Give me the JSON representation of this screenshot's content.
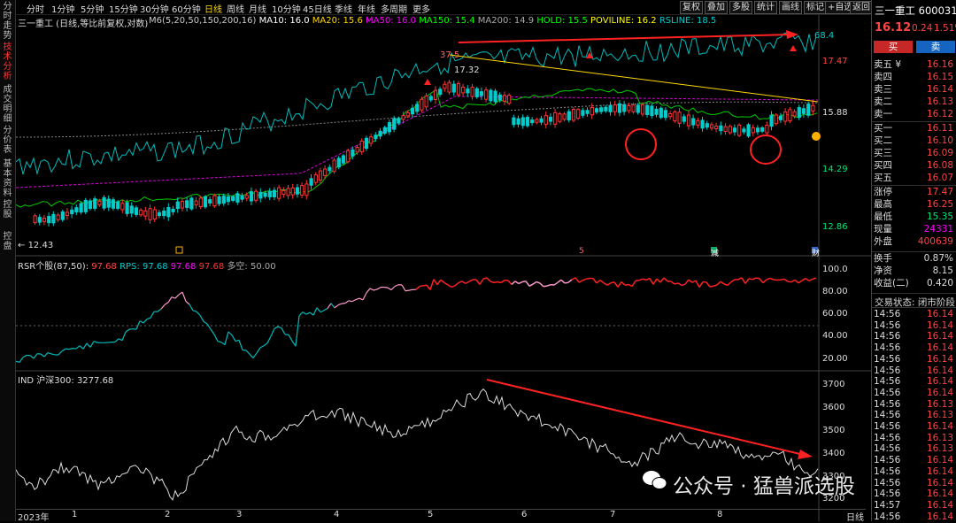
{
  "left_tabs": [
    "分时走势",
    "技术分析",
    "成交明细",
    "分价表",
    "基本资料",
    "控股",
    "控盘"
  ],
  "toolbar": {
    "periods": [
      "分时",
      "1分钟",
      "5分钟",
      "15分钟",
      "30分钟",
      "60分钟",
      "日线",
      "周线",
      "月线",
      "10分钟",
      "45日线",
      "季线",
      "年线",
      "多周期",
      "更多"
    ],
    "active_period": "日线",
    "buttons": [
      "复权",
      "叠加",
      "多股",
      "统计",
      "画线",
      "标记",
      "+自选",
      "返回"
    ]
  },
  "main_legend": {
    "title": "三一重工 (日线,等比前复权,对数)",
    "items": [
      {
        "text": "M6(5,20,50,150,200,16)",
        "color": "#cccccc"
      },
      {
        "text": "MA10: 16.0",
        "color": "#ffffff"
      },
      {
        "text": "MA20: 15.6",
        "color": "#ffd700"
      },
      {
        "text": "MA50: 16.0",
        "color": "#ff00ff"
      },
      {
        "text": "MA150: 15.4",
        "color": "#00ff00"
      },
      {
        "text": "MA200: 14.9",
        "color": "#aaaaaa"
      },
      {
        "text": "HOLD: 15.5",
        "color": "#00ff00"
      },
      {
        "text": "POVILINE: 16.2",
        "color": "#ffff00"
      },
      {
        "text": "RSLINE: 18.5",
        "color": "#00cccc"
      }
    ]
  },
  "price_axis": [
    "17.47",
    "15.88",
    "14.29",
    "12.86"
  ],
  "chart_annotations": {
    "high_label": "37.5",
    "high_price": "17.32",
    "low_price": "12.43",
    "rsline_value": "68.4",
    "mark_5": "5",
    "mark_jian": "减",
    "mark_cai": "财"
  },
  "rsr_legend": {
    "title": "RSR个股(87,50)",
    "items": [
      {
        "text": "RPS: 97.68",
        "color": "#00cccc"
      },
      {
        "text": "97.68",
        "color": "#ff00ff"
      },
      {
        "text": "97.68",
        "color": "#ff3333"
      },
      {
        "text": "多空: 50.00",
        "color": "#aaaaaa"
      }
    ],
    "first_value": "97.68"
  },
  "rsr_axis": [
    "100.0",
    "80.00",
    "60.00",
    "40.00",
    "20.00"
  ],
  "ind_legend": {
    "title": "IND 沪深300: 3277.68"
  },
  "ind_axis": [
    "3700",
    "3600",
    "3500",
    "3400",
    "3300",
    "3200"
  ],
  "x_axis": {
    "labels": [
      "2023年",
      "1",
      "2",
      "3",
      "4",
      "5",
      "6",
      "7",
      "8"
    ],
    "period": "日线"
  },
  "right_panel": {
    "header": "三一重工 600031",
    "price": "16.12",
    "change": "0.24",
    "change_pct": "1.51%",
    "buy_label": "买",
    "sell_label": "卖",
    "asks": [
      {
        "label": "卖五 ¥",
        "price": "16.16"
      },
      {
        "label": "卖四",
        "price": "16.15"
      },
      {
        "label": "卖三",
        "price": "16.14"
      },
      {
        "label": "卖二",
        "price": "16.13"
      },
      {
        "label": "卖一",
        "price": "16.12"
      }
    ],
    "bids": [
      {
        "label": "买一",
        "price": "16.11"
      },
      {
        "label": "买二",
        "price": "16.10"
      },
      {
        "label": "买三",
        "price": "16.09"
      },
      {
        "label": "买四",
        "price": "16.08"
      },
      {
        "label": "买五",
        "price": "16.07"
      }
    ],
    "stats": [
      {
        "label": "涨停",
        "value": "17.47",
        "color": "#ff4444"
      },
      {
        "label": "最高",
        "value": "16.25",
        "color": "#ff4444"
      },
      {
        "label": "最低",
        "value": "15.35",
        "color": "#00e676"
      },
      {
        "label": "现量",
        "value": "24331",
        "color": "#ff00ff"
      },
      {
        "label": "外盘",
        "value": "400639",
        "color": "#ff4444"
      }
    ],
    "stats2": [
      {
        "label": "换手",
        "value": "0.87%",
        "color": "#dddddd"
      },
      {
        "label": "净资",
        "value": "8.15",
        "color": "#dddddd"
      },
      {
        "label": "收益(二)",
        "value": "0.420",
        "color": "#dddddd"
      }
    ],
    "trade_status": "交易状态: 闭市阶段",
    "ticks": [
      {
        "time": "14:56",
        "price": "16.14"
      },
      {
        "time": "14:56",
        "price": "16.14"
      },
      {
        "time": "14:56",
        "price": "16.14"
      },
      {
        "time": "14:56",
        "price": "16.14"
      },
      {
        "time": "14:56",
        "price": "16.14"
      },
      {
        "time": "14:56",
        "price": "16.14"
      },
      {
        "time": "14:56",
        "price": "16.14"
      },
      {
        "time": "14:56",
        "price": "16.14"
      },
      {
        "time": "14:56",
        "price": "16.13"
      },
      {
        "time": "14:56",
        "price": "16.13"
      },
      {
        "time": "14:56",
        "price": "16.14"
      },
      {
        "time": "14:56",
        "price": "16.13"
      },
      {
        "time": "14:56",
        "price": "16.13"
      },
      {
        "time": "14:56",
        "price": "16.14"
      },
      {
        "time": "14:56",
        "price": "16.14"
      },
      {
        "time": "14:56",
        "price": "16.14"
      },
      {
        "time": "14:56",
        "price": "16.14"
      },
      {
        "time": "14:57",
        "price": "16.14"
      },
      {
        "time": "14:56",
        "price": "16.14"
      }
    ]
  },
  "watermark": "公众号 · 猛兽派选股"
}
